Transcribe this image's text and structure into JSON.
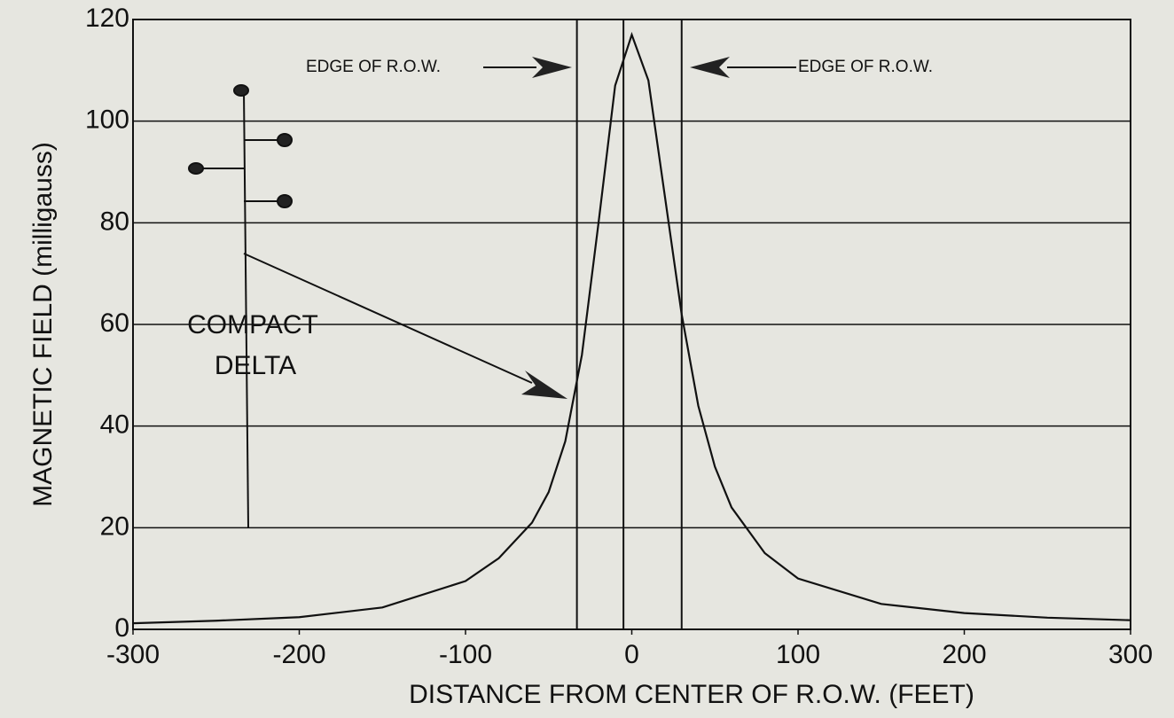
{
  "chart_data": {
    "type": "line",
    "xlabel": "DISTANCE FROM CENTER OF R.O.W. (FEET)",
    "ylabel": "MAGNETIC FIELD (milligauss)",
    "x": [
      -300,
      -250,
      -200,
      -150,
      -100,
      -80,
      -60,
      -50,
      -40,
      -30,
      -20,
      -10,
      0,
      10,
      20,
      30,
      40,
      50,
      60,
      80,
      100,
      150,
      200,
      250,
      300
    ],
    "series": [
      {
        "color": "#111111",
        "values": [
          1.2,
          1.7,
          2.4,
          4.3,
          9.5,
          14,
          21,
          27,
          37,
          54,
          80,
          107,
          117,
          108,
          85,
          62,
          44,
          32,
          24,
          15,
          10,
          5,
          3.2,
          2.3,
          1.8
        ]
      }
    ],
    "xlim": [
      -300,
      300
    ],
    "ylim": [
      0,
      120
    ],
    "xticks": [
      -300,
      -200,
      -100,
      0,
      100,
      200,
      300
    ],
    "yticks": [
      0,
      20,
      40,
      60,
      80,
      100,
      120
    ],
    "grid": true,
    "reference_lines": [
      -33,
      -5,
      30
    ],
    "annotations": [
      "EDGE OF R.O.W.",
      "EDGE OF R.O.W.",
      "COMPACT",
      "DELTA"
    ]
  }
}
